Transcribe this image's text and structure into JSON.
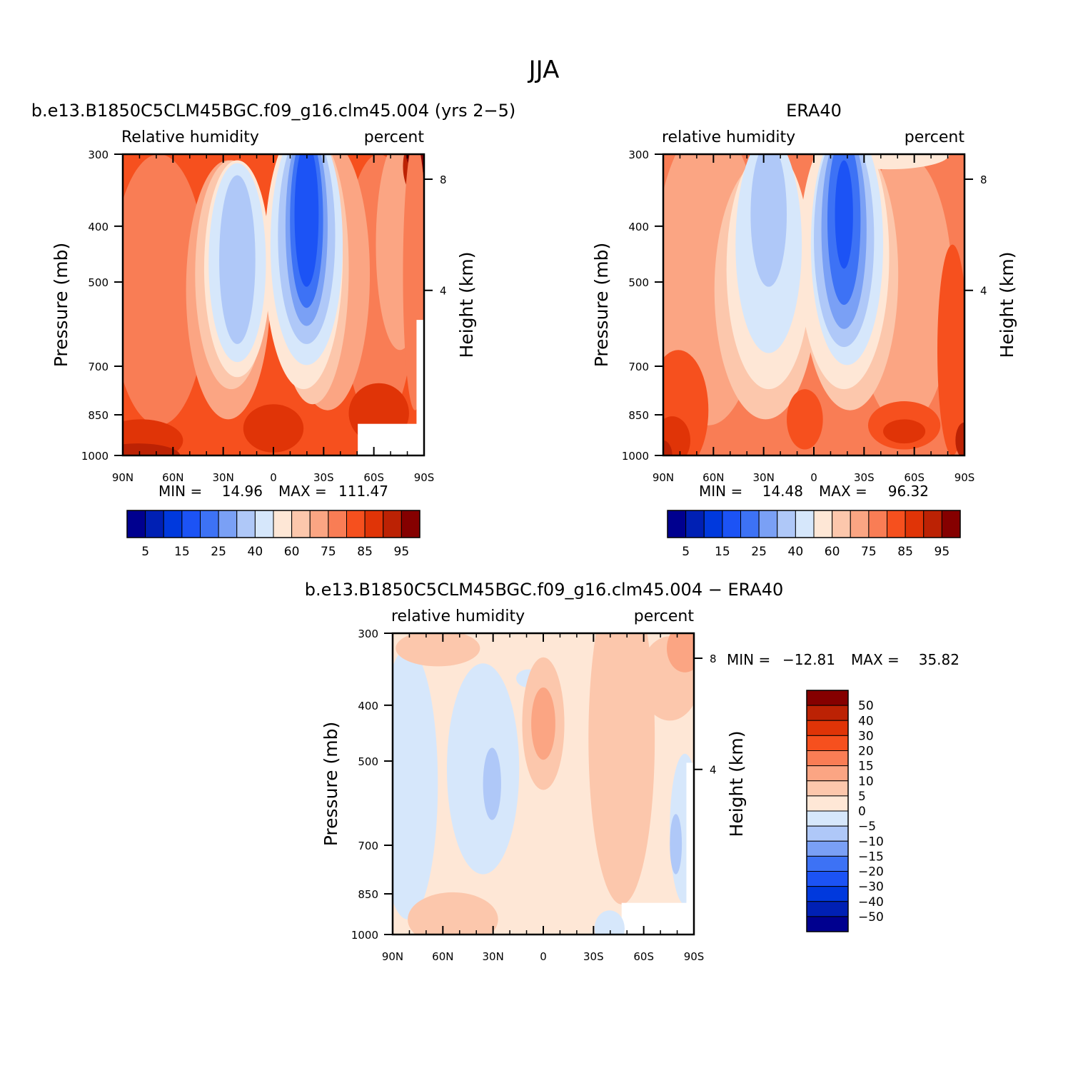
{
  "figure": {
    "title": "JJA"
  },
  "colors": {
    "rh_fill": [
      "#00008f",
      "#0020b4",
      "#0039dd",
      "#1c53f5",
      "#3d72f5",
      "#7aa0f5",
      "#afc8f8",
      "#d6e7fb",
      "#fee7d6",
      "#fcc7ac",
      "#fba583",
      "#f97d55",
      "#f6501e",
      "#e03407",
      "#bc2204",
      "#850000"
    ],
    "diff_fill": [
      "#00008f",
      "#0020b4",
      "#0039dd",
      "#1c53f5",
      "#3d72f5",
      "#7aa0f5",
      "#afc8f8",
      "#d6e7fb",
      "#fee7d6",
      "#fcc7ac",
      "#fba583",
      "#f97d55",
      "#f6501e",
      "#e03407",
      "#bc2204",
      "#850000"
    ]
  },
  "chart_data": [
    {
      "type": "heatmap",
      "title": "b.e13.B1850C5CLM45BGC.f09_g16.clm45.004 (yrs 2−5)",
      "left_label": "Relative humidity",
      "right_label": "percent",
      "ylabel": "Pressure (mb)",
      "y2label": "Height (km)",
      "x_ticks": [
        "90N",
        "60N",
        "30N",
        "0",
        "30S",
        "60S",
        "90S"
      ],
      "y_ticks": [
        "300",
        "400",
        "500",
        "700",
        "850",
        "1000"
      ],
      "y2_ticks": [
        "8",
        "4"
      ],
      "stats": {
        "min_label": "MIN =",
        "min": "14.96",
        "max_label": "MAX =",
        "max": "111.47"
      },
      "colorbar_labels": [
        "5",
        "15",
        "25",
        "40",
        "60",
        "75",
        "85",
        "95"
      ],
      "scale": {
        "lat_range": [
          90,
          -90
        ],
        "pressure_range": [
          300,
          1000
        ],
        "log_pressure": true
      }
    },
    {
      "type": "heatmap",
      "title": "ERA40",
      "left_label": "relative humidity",
      "right_label": "percent",
      "ylabel": "Pressure (mb)",
      "y2label": "Height (km)",
      "x_ticks": [
        "90N",
        "60N",
        "30N",
        "0",
        "30S",
        "60S",
        "90S"
      ],
      "y_ticks": [
        "300",
        "400",
        "500",
        "700",
        "850",
        "1000"
      ],
      "y2_ticks": [
        "8",
        "4"
      ],
      "stats": {
        "min_label": "MIN =",
        "min": "14.48",
        "max_label": "MAX =",
        "max": "96.32"
      },
      "colorbar_labels": [
        "5",
        "15",
        "25",
        "40",
        "60",
        "75",
        "85",
        "95"
      ],
      "scale": {
        "lat_range": [
          90,
          -90
        ],
        "pressure_range": [
          300,
          1000
        ],
        "log_pressure": true
      }
    },
    {
      "type": "heatmap",
      "title": "b.e13.B1850C5CLM45BGC.f09_g16.clm45.004 − ERA40",
      "left_label": "relative humidity",
      "right_label": "percent",
      "ylabel": "Pressure (mb)",
      "y2label": "Height (km)",
      "x_ticks": [
        "90N",
        "60N",
        "30N",
        "0",
        "30S",
        "60S",
        "90S"
      ],
      "y_ticks": [
        "300",
        "400",
        "500",
        "700",
        "850",
        "1000"
      ],
      "y2_ticks": [
        "8",
        "4"
      ],
      "stats": {
        "min_label": "MIN =",
        "min": "−12.81",
        "max_label": "MAX =",
        "max": "35.82"
      },
      "colorbar_labels": [
        "50",
        "40",
        "30",
        "20",
        "15",
        "10",
        "5",
        "0",
        "−5",
        "−10",
        "−15",
        "−20",
        "−30",
        "−40",
        "−50"
      ],
      "scale": {
        "lat_range": [
          90,
          -90
        ],
        "pressure_range": [
          300,
          1000
        ],
        "log_pressure": true
      }
    }
  ]
}
